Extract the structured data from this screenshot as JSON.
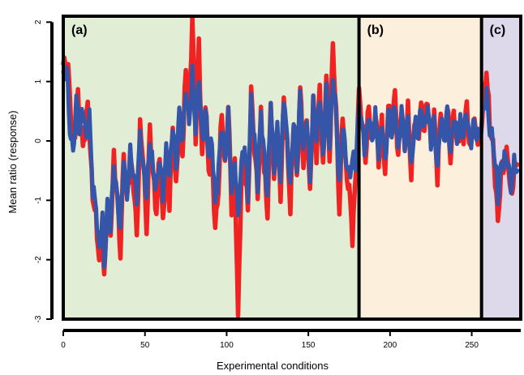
{
  "chart_data": {
    "type": "line",
    "xlabel": "Experimental conditions",
    "ylabel": "Mean ratio (response)",
    "xlim": [
      0,
      280
    ],
    "ylim": [
      -3,
      2.1
    ],
    "x_ticks": [
      0,
      50,
      100,
      150,
      200,
      250
    ],
    "y_ticks": [
      -3,
      -2,
      -1,
      0,
      1,
      2
    ],
    "panels": [
      {
        "label": "(a)",
        "x_start": 0,
        "x_end": 181,
        "color": "#e2edd6"
      },
      {
        "label": "(b)",
        "x_start": 181,
        "x_end": 256,
        "color": "#fcefdc"
      },
      {
        "label": "(c)",
        "x_start": 256,
        "x_end": 280,
        "color": "#ddd8ea"
      }
    ],
    "series": [
      {
        "color": "#f02222",
        "anchors": [
          [
            0,
            1.3
          ],
          [
            3,
            1.2
          ],
          [
            6,
            -0.15
          ],
          [
            9,
            0.7
          ],
          [
            12,
            -0.1
          ],
          [
            15,
            0.6
          ],
          [
            18,
            -0.9
          ],
          [
            20,
            -1.3
          ],
          [
            22,
            -2.0
          ],
          [
            24,
            -1.4
          ],
          [
            25,
            -2.4
          ],
          [
            27,
            -1.0
          ],
          [
            29,
            -1.5
          ],
          [
            31,
            -0.3
          ],
          [
            33,
            -0.9
          ],
          [
            35,
            -1.9
          ],
          [
            37,
            -0.2
          ],
          [
            39,
            -1.0
          ],
          [
            41,
            -0.3
          ],
          [
            43,
            -0.7
          ],
          [
            45,
            -1.6
          ],
          [
            47,
            0.2
          ],
          [
            49,
            -0.3
          ],
          [
            51,
            -1.5
          ],
          [
            53,
            0.2
          ],
          [
            55,
            -0.6
          ],
          [
            57,
            -1.2
          ],
          [
            59,
            -0.2
          ],
          [
            61,
            -1.4
          ],
          [
            63,
            -0.4
          ],
          [
            65,
            -1.0
          ],
          [
            67,
            0.2
          ],
          [
            69,
            -0.8
          ],
          [
            71,
            0.4
          ],
          [
            73,
            -0.2
          ],
          [
            75,
            1.2
          ],
          [
            77,
            0.4
          ],
          [
            79,
            2.1
          ],
          [
            81,
            0.1
          ],
          [
            83,
            1.6
          ],
          [
            85,
            -0.3
          ],
          [
            87,
            0.7
          ],
          [
            89,
            -0.5
          ],
          [
            91,
            -0.2
          ],
          [
            93,
            -1.5
          ],
          [
            95,
            -0.8
          ],
          [
            97,
            0.5
          ],
          [
            99,
            -0.5
          ],
          [
            101,
            0.6
          ],
          [
            103,
            -1.1
          ],
          [
            105,
            -0.4
          ],
          [
            107,
            -3.0
          ],
          [
            109,
            -0.6
          ],
          [
            111,
            -0.3
          ],
          [
            113,
            -1.2
          ],
          [
            115,
            0.8
          ],
          [
            117,
            -0.1
          ],
          [
            119,
            -0.9
          ],
          [
            121,
            0.4
          ],
          [
            123,
            -0.5
          ],
          [
            125,
            -1.2
          ],
          [
            127,
            0.6
          ],
          [
            129,
            -0.7
          ],
          [
            131,
            0.1
          ],
          [
            133,
            -0.9
          ],
          [
            135,
            0.7
          ],
          [
            137,
            -0.1
          ],
          [
            139,
            -1.1
          ],
          [
            141,
            0.3
          ],
          [
            143,
            -0.7
          ],
          [
            145,
            0.9
          ],
          [
            147,
            -0.4
          ],
          [
            149,
            0.4
          ],
          [
            151,
            -0.9
          ],
          [
            153,
            0.7
          ],
          [
            155,
            -0.2
          ],
          [
            157,
            0.9
          ],
          [
            159,
            -0.5
          ],
          [
            161,
            1.2
          ],
          [
            163,
            -0.3
          ],
          [
            165,
            1.6
          ],
          [
            167,
            0.5
          ],
          [
            169,
            -1.2
          ],
          [
            171,
            0.5
          ],
          [
            173,
            -0.5
          ],
          [
            175,
            -0.8
          ],
          [
            177,
            -1.6
          ],
          [
            179,
            -0.6
          ],
          [
            181,
            0.8
          ],
          [
            183,
            0.3
          ],
          [
            185,
            -0.3
          ],
          [
            187,
            0.6
          ],
          [
            189,
            -0.1
          ],
          [
            191,
            0.5
          ],
          [
            193,
            -0.3
          ],
          [
            195,
            0.3
          ],
          [
            197,
            -0.6
          ],
          [
            199,
            0.7
          ],
          [
            201,
            0.1
          ],
          [
            203,
            0.8
          ],
          [
            205,
            -0.3
          ],
          [
            207,
            0.6
          ],
          [
            209,
            -0.1
          ],
          [
            211,
            0.5
          ],
          [
            213,
            -0.6
          ],
          [
            215,
            0.4
          ],
          [
            217,
            0.0
          ],
          [
            219,
            0.6
          ],
          [
            221,
            0.2
          ],
          [
            223,
            0.7
          ],
          [
            225,
            -0.1
          ],
          [
            227,
            0.4
          ],
          [
            229,
            -0.6
          ],
          [
            231,
            0.5
          ],
          [
            233,
            0.0
          ],
          [
            235,
            0.6
          ],
          [
            237,
            -0.3
          ],
          [
            239,
            0.5
          ],
          [
            241,
            -0.1
          ],
          [
            243,
            0.3
          ],
          [
            245,
            0.1
          ],
          [
            247,
            0.6
          ],
          [
            249,
            -0.2
          ],
          [
            251,
            0.3
          ],
          [
            253,
            0.1
          ],
          [
            255,
            0.0
          ],
          [
            257,
            0.6
          ],
          [
            259,
            1.2
          ],
          [
            261,
            0.3
          ],
          [
            263,
            -0.1
          ],
          [
            265,
            -0.9
          ],
          [
            266,
            -1.4
          ],
          [
            268,
            -0.5
          ],
          [
            270,
            -0.4
          ],
          [
            272,
            -0.2
          ],
          [
            274,
            -1.0
          ],
          [
            276,
            -0.5
          ],
          [
            278,
            -0.4
          ]
        ]
      },
      {
        "color": "#3556a8",
        "anchors": [
          [
            0,
            1.0
          ],
          [
            2,
            1.3
          ],
          [
            4,
            0.2
          ],
          [
            6,
            -0.2
          ],
          [
            8,
            0.7
          ],
          [
            10,
            0.1
          ],
          [
            12,
            0.6
          ],
          [
            14,
            0.0
          ],
          [
            16,
            0.4
          ],
          [
            18,
            -0.8
          ],
          [
            20,
            -1.1
          ],
          [
            22,
            -1.9
          ],
          [
            24,
            -1.2
          ],
          [
            25,
            -2.2
          ],
          [
            27,
            -1.1
          ],
          [
            29,
            -1.4
          ],
          [
            31,
            -0.4
          ],
          [
            33,
            -1.0
          ],
          [
            35,
            -1.5
          ],
          [
            37,
            -0.3
          ],
          [
            39,
            -0.9
          ],
          [
            41,
            -0.2
          ],
          [
            43,
            -0.6
          ],
          [
            45,
            -0.9
          ],
          [
            47,
            0.1
          ],
          [
            49,
            -0.5
          ],
          [
            51,
            -0.9
          ],
          [
            53,
            0.0
          ],
          [
            55,
            -0.5
          ],
          [
            57,
            -0.8
          ],
          [
            59,
            -0.3
          ],
          [
            61,
            -0.9
          ],
          [
            63,
            -0.2
          ],
          [
            65,
            -0.6
          ],
          [
            67,
            0.3
          ],
          [
            69,
            -0.5
          ],
          [
            71,
            0.5
          ],
          [
            73,
            0.0
          ],
          [
            75,
            0.9
          ],
          [
            77,
            0.3
          ],
          [
            79,
            1.1
          ],
          [
            81,
            0.2
          ],
          [
            83,
            1.1
          ],
          [
            85,
            0.0
          ],
          [
            87,
            0.5
          ],
          [
            89,
            -0.2
          ],
          [
            91,
            0.0
          ],
          [
            93,
            -1.1
          ],
          [
            95,
            -0.5
          ],
          [
            97,
            0.3
          ],
          [
            99,
            -0.3
          ],
          [
            101,
            0.4
          ],
          [
            103,
            -0.8
          ],
          [
            105,
            -0.3
          ],
          [
            107,
            -1.3
          ],
          [
            109,
            -0.4
          ],
          [
            111,
            -0.1
          ],
          [
            113,
            -0.9
          ],
          [
            115,
            0.7
          ],
          [
            117,
            0.0
          ],
          [
            119,
            -0.7
          ],
          [
            121,
            0.5
          ],
          [
            123,
            -0.3
          ],
          [
            125,
            -0.9
          ],
          [
            127,
            0.7
          ],
          [
            129,
            -0.5
          ],
          [
            131,
            0.2
          ],
          [
            133,
            -0.7
          ],
          [
            135,
            0.8
          ],
          [
            137,
            0.0
          ],
          [
            139,
            -0.8
          ],
          [
            141,
            0.4
          ],
          [
            143,
            -0.5
          ],
          [
            145,
            0.8
          ],
          [
            147,
            -0.2
          ],
          [
            149,
            0.4
          ],
          [
            151,
            -0.6
          ],
          [
            153,
            0.6
          ],
          [
            155,
            0.0
          ],
          [
            157,
            0.8
          ],
          [
            159,
            -0.3
          ],
          [
            161,
            0.9
          ],
          [
            163,
            -0.1
          ],
          [
            165,
            1.1
          ],
          [
            167,
            0.4
          ],
          [
            169,
            -0.8
          ],
          [
            171,
            0.3
          ],
          [
            173,
            -0.3
          ],
          [
            175,
            -0.6
          ],
          [
            177,
            -0.3
          ],
          [
            179,
            -0.4
          ],
          [
            181,
            0.6
          ],
          [
            183,
            0.2
          ],
          [
            185,
            -0.2
          ],
          [
            187,
            0.5
          ],
          [
            189,
            0.0
          ],
          [
            191,
            0.4
          ],
          [
            193,
            -0.2
          ],
          [
            195,
            0.3
          ],
          [
            197,
            -0.4
          ],
          [
            199,
            0.5
          ],
          [
            201,
            0.1
          ],
          [
            203,
            0.6
          ],
          [
            205,
            -0.2
          ],
          [
            207,
            0.5
          ],
          [
            209,
            0.0
          ],
          [
            211,
            0.4
          ],
          [
            213,
            -0.5
          ],
          [
            215,
            0.3
          ],
          [
            217,
            0.1
          ],
          [
            219,
            0.5
          ],
          [
            221,
            0.2
          ],
          [
            223,
            0.6
          ],
          [
            225,
            0.0
          ],
          [
            227,
            0.3
          ],
          [
            229,
            -0.5
          ],
          [
            231,
            0.4
          ],
          [
            233,
            0.0
          ],
          [
            235,
            0.5
          ],
          [
            237,
            -0.2
          ],
          [
            239,
            0.4
          ],
          [
            241,
            0.0
          ],
          [
            243,
            0.3
          ],
          [
            245,
            0.1
          ],
          [
            247,
            0.5
          ],
          [
            249,
            -0.1
          ],
          [
            251,
            0.3
          ],
          [
            253,
            0.1
          ],
          [
            255,
            0.1
          ],
          [
            257,
            0.5
          ],
          [
            259,
            0.8
          ],
          [
            261,
            0.2
          ],
          [
            263,
            0.0
          ],
          [
            265,
            -0.6
          ],
          [
            266,
            -1.0
          ],
          [
            268,
            -0.4
          ],
          [
            270,
            -0.3
          ],
          [
            272,
            -0.3
          ],
          [
            274,
            -0.8
          ],
          [
            276,
            -0.4
          ],
          [
            278,
            -0.5
          ]
        ]
      }
    ]
  }
}
